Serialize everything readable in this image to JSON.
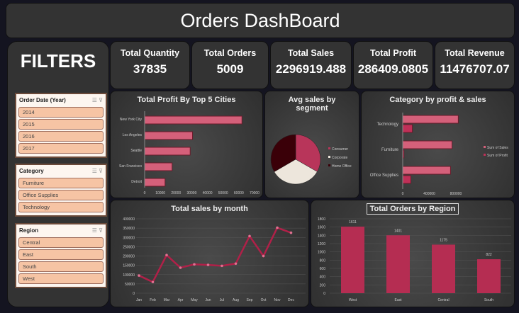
{
  "title": "Orders DashBoard",
  "filters": {
    "heading": "FILTERS",
    "slicers": [
      {
        "title": "Order Date (Year)",
        "items": [
          "2014",
          "2015",
          "2016",
          "2017"
        ]
      },
      {
        "title": "Category",
        "items": [
          "Furniture",
          "Office Supplies",
          "Technology"
        ]
      },
      {
        "title": "Region",
        "items": [
          "Central",
          "East",
          "South",
          "West"
        ]
      }
    ]
  },
  "kpis": [
    {
      "label": "Total Quantity",
      "value": "37835"
    },
    {
      "label": "Total Orders",
      "value": "5009"
    },
    {
      "label": "Total Sales",
      "value": "2296919.488"
    },
    {
      "label": "Total Profit",
      "value": "286409.0805"
    },
    {
      "label": "Total Revenue",
      "value": "11476707.07"
    }
  ],
  "colors": {
    "accent": "#d4607a",
    "bar": "#b52d52"
  },
  "chart_data": [
    {
      "id": "cities",
      "type": "bar",
      "orientation": "horizontal",
      "title": "Total Profit By Top 5 Cities",
      "categories": [
        "New York City",
        "Los Angeles",
        "Seattle",
        "San Francisco",
        "Detroit"
      ],
      "values": [
        62000,
        30500,
        29000,
        17500,
        13000
      ],
      "xlim": [
        0,
        70000
      ],
      "ticks": [
        "0",
        "10000",
        "20000",
        "30000",
        "40000",
        "50000",
        "60000",
        "70000"
      ]
    },
    {
      "id": "segment",
      "type": "pie",
      "title": "Avg sales by segment",
      "categories": [
        "Consumer",
        "Corporate",
        "Home Office"
      ],
      "values": [
        33.3,
        33.3,
        33.4
      ],
      "colors": [
        "#b8355a",
        "#ede6dc",
        "#3a0008"
      ]
    },
    {
      "id": "category",
      "type": "bar",
      "orientation": "horizontal",
      "title": "Category by profit & sales",
      "categories": [
        "Technology",
        "Furniture",
        "Office Supplies"
      ],
      "series": [
        {
          "name": "Sum of Sales",
          "values": [
            836000,
            742000,
            719000
          ]
        },
        {
          "name": "Sum of Profit",
          "values": [
            145000,
            18000,
            122000
          ]
        }
      ],
      "xlim": [
        0,
        1000000
      ],
      "ticks": [
        "0",
        "400000",
        "800000"
      ]
    },
    {
      "id": "month",
      "type": "line",
      "title": "Total sales by month",
      "categories": [
        "Jan",
        "Feb",
        "Mar",
        "Apr",
        "May",
        "Jun",
        "Jul",
        "Aug",
        "Sep",
        "Oct",
        "Nov",
        "Dec"
      ],
      "values": [
        95000,
        60000,
        205000,
        137000,
        155000,
        152000,
        147000,
        159000,
        307000,
        200000,
        352000,
        325000
      ],
      "ylim": [
        0,
        400000
      ],
      "ticks": [
        "0",
        "50000",
        "100000",
        "150000",
        "200000",
        "250000",
        "300000",
        "350000",
        "400000"
      ]
    },
    {
      "id": "region",
      "type": "bar",
      "title": "Total Orders by Region",
      "categories": [
        "West",
        "East",
        "Central",
        "South"
      ],
      "values": [
        1611,
        1401,
        1175,
        822
      ],
      "ylim": [
        0,
        1800
      ],
      "ticks": [
        "0",
        "200",
        "400",
        "600",
        "800",
        "1000",
        "1200",
        "1400",
        "1600",
        "1800"
      ]
    }
  ]
}
